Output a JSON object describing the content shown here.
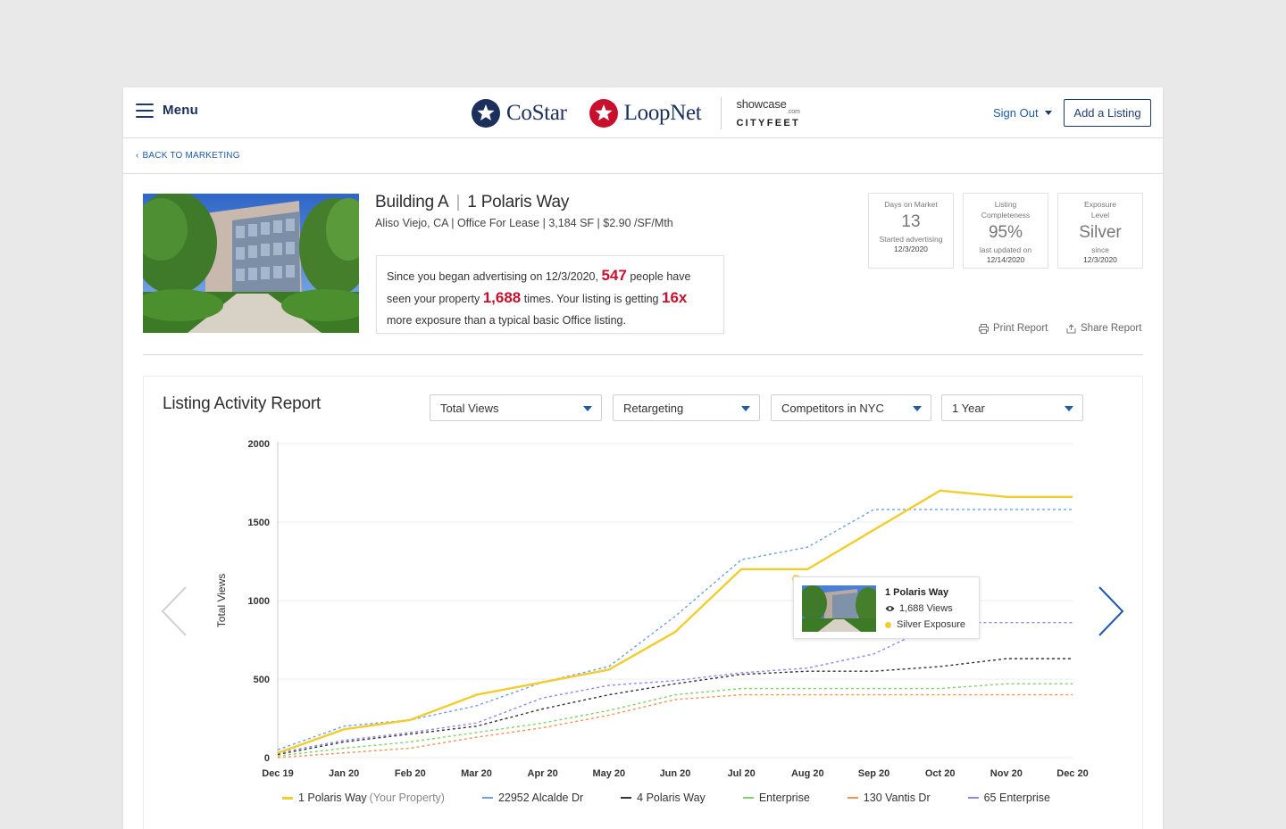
{
  "header": {
    "menu_label": "Menu",
    "brands": {
      "costar": "CoStar",
      "loopnet": "LoopNet",
      "showcase": "showcase",
      "showcase_com": ".com",
      "cityfeet": "CITYFEET"
    },
    "sign_out": "Sign Out",
    "add_listing": "Add a Listing"
  },
  "nav": {
    "back": "BACK TO MARKETING"
  },
  "property": {
    "name": "Building A",
    "address": "1 Polaris Way",
    "subtitle": "Aliso Viejo, CA | Office For Lease | 3,184 SF | $2.90 /SF/Mth",
    "exposure": {
      "part1": "Since you began advertising on 12/3/2020, ",
      "people": "547",
      "part2": " people have seen your property ",
      "times": "1,688",
      "part3": " times. Your listing is getting ",
      "multiplier": "16x",
      "part4": " more exposure than a typical basic Office listing."
    }
  },
  "stats": [
    {
      "label": "Days on Market",
      "value": "13",
      "note": "Started advertising",
      "date": "12/3/2020"
    },
    {
      "label": "Listing Completeness",
      "value": "95%",
      "note": "last updated on",
      "date": "12/14/2020"
    },
    {
      "label": "Exposure Level",
      "value": "Silver",
      "note": "since",
      "date": "12/3/2020"
    }
  ],
  "actions": {
    "print": "Print Report",
    "share": "Share Report"
  },
  "report": {
    "title": "Listing Activity Report",
    "filters": [
      "Total Views",
      "Retargeting",
      "Competitors in NYC",
      "1 Year"
    ]
  },
  "tooltip": {
    "title": "1 Polaris Way",
    "views": "1,688 Views",
    "exposure": "Silver Exposure"
  },
  "colors": {
    "accent_red": "#c8102e",
    "link_blue": "#1f5aa6",
    "navy": "#1a3a6b"
  },
  "chart_data": {
    "type": "line",
    "ylabel": "Total Views",
    "xlabel": "",
    "ylim": [
      0,
      2000
    ],
    "yticks": [
      0,
      500,
      1000,
      1500,
      2000
    ],
    "categories": [
      "Dec 19",
      "Jan 20",
      "Feb 20",
      "Mar 20",
      "Apr 20",
      "May 20",
      "Jun 20",
      "Jul 20",
      "Aug 20",
      "Sep 20",
      "Oct 20",
      "Nov 20",
      "Dec 20"
    ],
    "legend_position": "bottom",
    "grid": true,
    "series": [
      {
        "name": "1 Polaris Way",
        "note": "(Your Property)",
        "color": "#f2cd2e",
        "dash": false,
        "values": [
          30,
          180,
          240,
          400,
          480,
          560,
          800,
          1200,
          1200,
          1450,
          1700,
          1660,
          1660
        ]
      },
      {
        "name": "22952 Alcalde Dr",
        "color": "#6f9ee8",
        "dash": true,
        "values": [
          50,
          200,
          240,
          330,
          480,
          580,
          900,
          1260,
          1340,
          1580,
          1580,
          1580,
          1580
        ]
      },
      {
        "name": "4 Polaris Way",
        "color": "#333333",
        "dash": true,
        "values": [
          20,
          100,
          150,
          200,
          310,
          400,
          470,
          530,
          550,
          550,
          580,
          630,
          630
        ]
      },
      {
        "name": "Enterprise",
        "color": "#7fd46a",
        "dash": true,
        "values": [
          10,
          60,
          100,
          160,
          220,
          300,
          400,
          440,
          440,
          440,
          440,
          470,
          470
        ]
      },
      {
        "name": "130 Vantis Dr",
        "color": "#f5924e",
        "dash": true,
        "values": [
          0,
          30,
          60,
          130,
          190,
          270,
          370,
          400,
          400,
          400,
          400,
          400,
          400
        ]
      },
      {
        "name": "65 Enterprise",
        "color": "#8a8af0",
        "dash": true,
        "values": [
          30,
          110,
          160,
          220,
          380,
          460,
          490,
          540,
          570,
          660,
          860,
          860,
          860
        ]
      }
    ]
  }
}
